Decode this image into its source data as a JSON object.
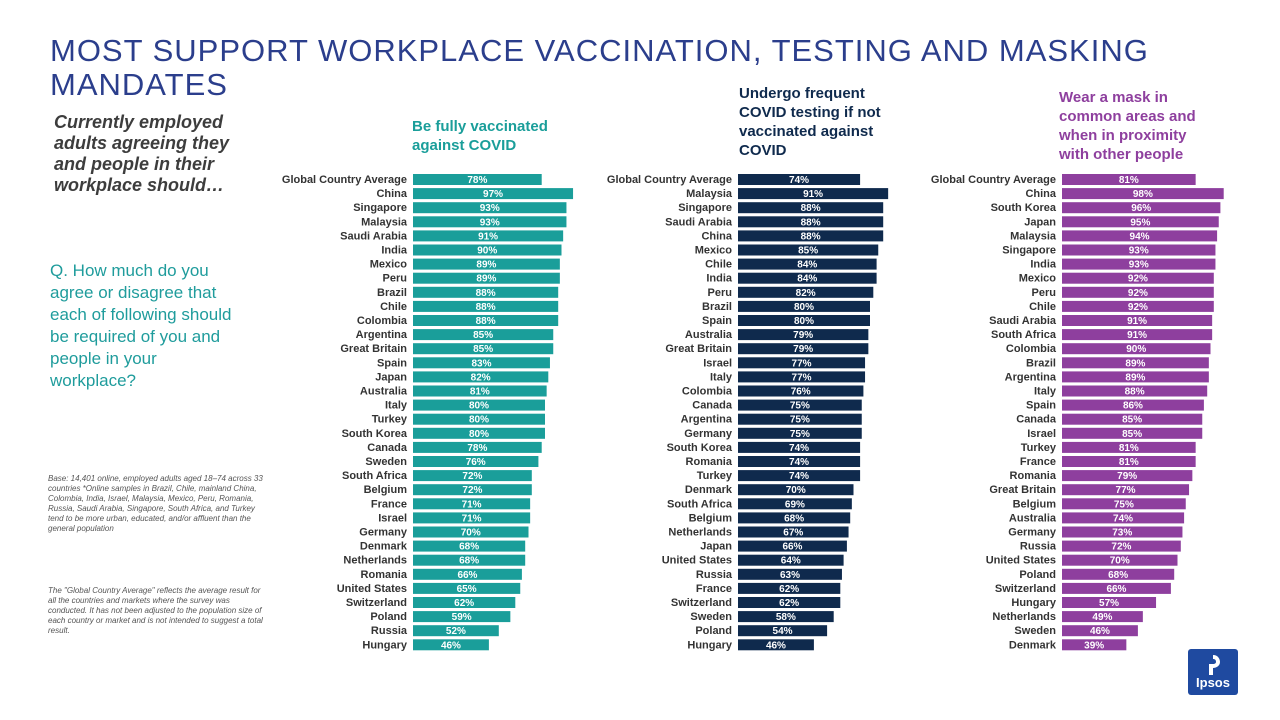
{
  "title": "MOST SUPPORT WORKPLACE VACCINATION, TESTING AND MASKING MANDATES",
  "subtitle": "Currently employed adults agreeing they and people in their workplace should…",
  "question": "Q. How much do you agree or disagree that each of following should be required of you and people in your workplace?",
  "base_note": "Base: 14,401 online, employed adults aged 18–74 across 33 countries *Online samples in Brazil, Chile, mainland China, Colombia, India, Israel, Malaysia, Mexico, Peru, Romania, Russia, Saudi Arabia, Singapore, South Africa, and Turkey tend to be more urban, educated, and/or affluent than the general population",
  "average_note": "The \"Global Country Average\" reflects the average result for all the countries and markets where the survey was conducted. It has not been adjusted to the population size of each country or market and is not intended to suggest a total result.",
  "logo": {
    "label": "Ipsos",
    "color": "#1f4aa0"
  },
  "colors": {
    "vaccinated": "#1a9e9a",
    "testing": "#0f2a4d",
    "mask": "#8e3f9e",
    "title": "#2b3e8c"
  },
  "chart_data": [
    {
      "type": "bar",
      "orientation": "horizontal",
      "title": "Be fully vaccinated against COVID",
      "color": "#1a9e9a",
      "xlim": [
        0,
        100
      ],
      "categories": [
        "Global Country Average",
        "China",
        "Singapore",
        "Malaysia",
        "Saudi Arabia",
        "India",
        "Mexico",
        "Peru",
        "Brazil",
        "Chile",
        "Colombia",
        "Argentina",
        "Great Britain",
        "Spain",
        "Japan",
        "Australia",
        "Italy",
        "Turkey",
        "South Korea",
        "Canada",
        "Sweden",
        "South Africa",
        "Belgium",
        "France",
        "Israel",
        "Germany",
        "Denmark",
        "Netherlands",
        "Romania",
        "United States",
        "Switzerland",
        "Poland",
        "Russia",
        "Hungary"
      ],
      "values": [
        78,
        97,
        93,
        93,
        91,
        90,
        89,
        89,
        88,
        88,
        88,
        85,
        85,
        83,
        82,
        81,
        80,
        80,
        80,
        78,
        76,
        72,
        72,
        71,
        71,
        70,
        68,
        68,
        66,
        65,
        62,
        59,
        52,
        46
      ]
    },
    {
      "type": "bar",
      "orientation": "horizontal",
      "title": "Undergo frequent COVID testing if not vaccinated against COVID",
      "color": "#0f2a4d",
      "xlim": [
        0,
        100
      ],
      "categories": [
        "Global Country Average",
        "Malaysia",
        "Singapore",
        "Saudi Arabia",
        "China",
        "Mexico",
        "Chile",
        "India",
        "Peru",
        "Brazil",
        "Spain",
        "Australia",
        "Great Britain",
        "Israel",
        "Italy",
        "Colombia",
        "Canada",
        "Argentina",
        "Germany",
        "South Korea",
        "Romania",
        "Turkey",
        "Denmark",
        "South Africa",
        "Belgium",
        "Netherlands",
        "Japan",
        "United States",
        "Russia",
        "France",
        "Switzerland",
        "Sweden",
        "Poland",
        "Hungary"
      ],
      "values": [
        74,
        91,
        88,
        88,
        88,
        85,
        84,
        84,
        82,
        80,
        80,
        79,
        79,
        77,
        77,
        76,
        75,
        75,
        75,
        74,
        74,
        74,
        70,
        69,
        68,
        67,
        66,
        64,
        63,
        62,
        62,
        58,
        54,
        46
      ]
    },
    {
      "type": "bar",
      "orientation": "horizontal",
      "title": "Wear a mask in common areas and when in proximity with other people",
      "color": "#8e3f9e",
      "xlim": [
        0,
        100
      ],
      "categories": [
        "Global Country Average",
        "China",
        "South Korea",
        "Japan",
        "Malaysia",
        "Singapore",
        "India",
        "Mexico",
        "Peru",
        "Chile",
        "Saudi Arabia",
        "South Africa",
        "Colombia",
        "Brazil",
        "Argentina",
        "Italy",
        "Spain",
        "Canada",
        "Israel",
        "Turkey",
        "France",
        "Romania",
        "Great Britain",
        "Belgium",
        "Australia",
        "Germany",
        "Russia",
        "United States",
        "Poland",
        "Switzerland",
        "Hungary",
        "Netherlands",
        "Sweden",
        "Denmark"
      ],
      "values": [
        81,
        98,
        96,
        95,
        94,
        93,
        93,
        92,
        92,
        92,
        91,
        91,
        90,
        89,
        89,
        88,
        86,
        85,
        85,
        81,
        81,
        79,
        77,
        75,
        74,
        73,
        72,
        70,
        68,
        66,
        57,
        49,
        46,
        39
      ]
    }
  ]
}
